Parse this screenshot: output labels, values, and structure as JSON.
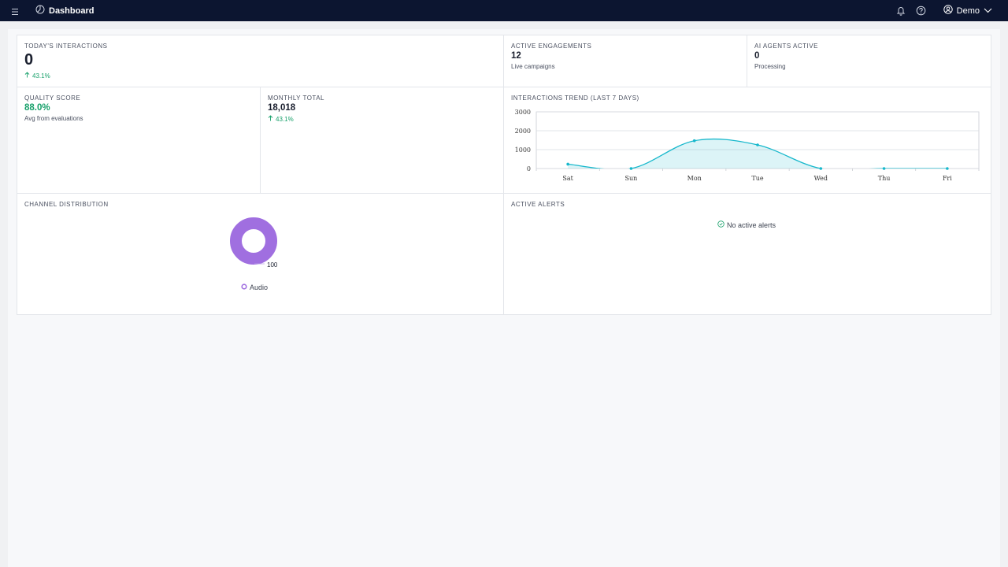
{
  "app": {
    "title": "Dashboard",
    "user": "Demo"
  },
  "metrics": {
    "todays_interactions": {
      "label": "TODAY'S INTERACTIONS",
      "value": "0",
      "trend": "43.1%"
    },
    "active_engagements": {
      "label": "ACTIVE ENGAGEMENTS",
      "value": "12",
      "sub": "Live campaigns"
    },
    "ai_agents": {
      "label": "AI AGENTS ACTIVE",
      "value": "0",
      "sub": "Processing"
    },
    "quality": {
      "label": "QUALITY SCORE",
      "value": "88.0%",
      "sub": "Avg from evaluations"
    },
    "monthly": {
      "label": "MONTHLY TOTAL",
      "value": "18,018",
      "trend": "43.1%"
    }
  },
  "trend_chart": {
    "label": "INTERACTIONS TREND (LAST 7 DAYS)",
    "y_ticks": [
      "3000",
      "2000",
      "1000",
      "0"
    ]
  },
  "channel": {
    "label": "CHANNEL DISTRIBUTION",
    "legend": "Audio",
    "value_label": "100"
  },
  "alerts": {
    "label": "ACTIVE ALERTS",
    "empty": "No active alerts"
  },
  "colors": {
    "topbar": "#0c1530",
    "accent": "#17b8cc",
    "green": "#17a06a",
    "donut": "#a06fe0"
  },
  "chart_data": [
    {
      "type": "area",
      "title": "INTERACTIONS TREND (LAST 7 DAYS)",
      "categories": [
        "Sat",
        "Sun",
        "Mon",
        "Tue",
        "Wed",
        "Thu",
        "Fri"
      ],
      "values": [
        230,
        0,
        1470,
        1250,
        0,
        0,
        0
      ],
      "ylim": [
        0,
        3000
      ],
      "y_ticks": [
        0,
        1000,
        2000,
        3000
      ],
      "grid": true
    },
    {
      "type": "pie",
      "categories": [
        "Audio"
      ],
      "values": [
        100
      ]
    }
  ]
}
